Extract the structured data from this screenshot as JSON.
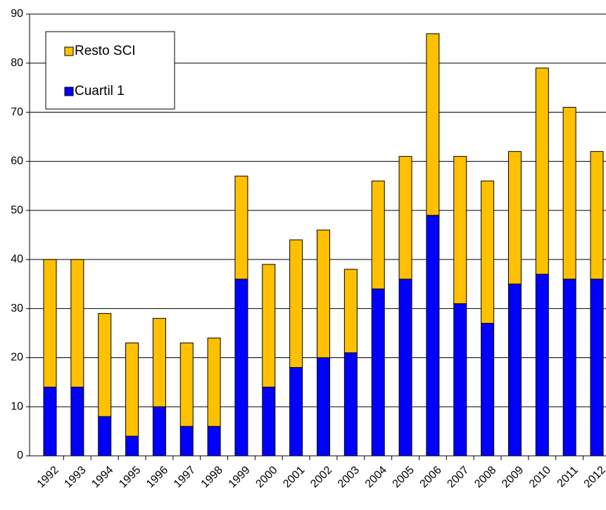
{
  "chart_data": {
    "type": "bar",
    "stacked": true,
    "categories": [
      "1992",
      "1993",
      "1994",
      "1995",
      "1996",
      "1997",
      "1998",
      "1999",
      "2000",
      "2001",
      "2002",
      "2003",
      "2004",
      "2005",
      "2006",
      "2007",
      "2008",
      "2009",
      "2010",
      "2011",
      "2012"
    ],
    "series": [
      {
        "name": "Cuartil 1",
        "color": "#0000ff",
        "values": [
          14,
          14,
          8,
          4,
          10,
          6,
          6,
          36,
          14,
          18,
          20,
          21,
          34,
          36,
          49,
          31,
          27,
          35,
          37,
          36,
          36
        ]
      },
      {
        "name": "Resto SCI",
        "color": "#ffc000",
        "values": [
          26,
          26,
          21,
          19,
          18,
          17,
          18,
          21,
          25,
          26,
          26,
          17,
          22,
          25,
          37,
          30,
          29,
          27,
          42,
          35,
          26
        ]
      }
    ],
    "ylim": [
      0,
      90
    ],
    "yticks": [
      0,
      10,
      20,
      30,
      40,
      50,
      60,
      70,
      80,
      90
    ],
    "grid": true,
    "legend": "top-left"
  }
}
